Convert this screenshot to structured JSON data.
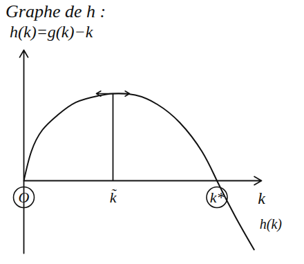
{
  "chart_data": {
    "type": "line",
    "title": "Graphe de h :",
    "subtitle": "h(k)=g(k)−k",
    "x_label": "k",
    "x": [
      0,
      1,
      2.5,
      4.5,
      7,
      10,
      12,
      15,
      18,
      21,
      24,
      26,
      28.5,
      31
    ],
    "values": [
      0,
      4,
      7,
      9,
      10.8,
      11.7,
      12,
      11.8,
      10.5,
      8,
      4,
      0,
      -5,
      -9.5
    ],
    "color": "#111111",
    "xlim": [
      0,
      32
    ],
    "ylim": [
      -10,
      18
    ],
    "xticks": [
      {
        "value": 0,
        "label": "O"
      },
      {
        "value": 12,
        "label": "k̃"
      },
      {
        "value": 26,
        "label": "k*"
      }
    ],
    "yticks": [],
    "tick_labels": "x",
    "grid": false,
    "annotations": [
      {
        "text": "h(k)",
        "x": 31,
        "y": -6
      }
    ],
    "vertical_segment": {
      "x": 12,
      "ymin": 0,
      "ymax": 12
    }
  }
}
